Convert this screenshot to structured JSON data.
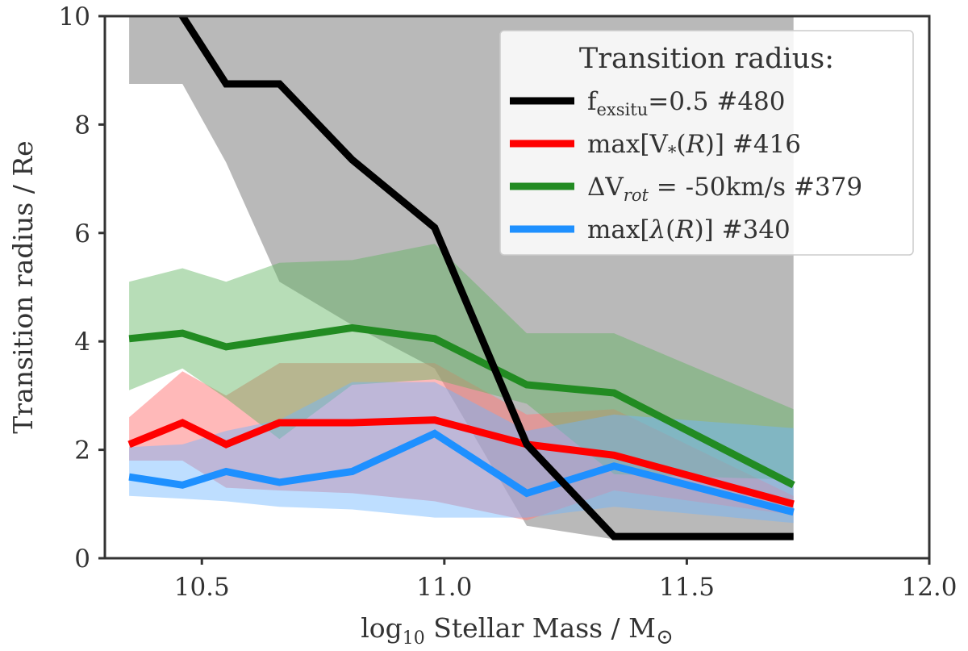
{
  "chart_data": {
    "type": "line",
    "title": "",
    "xlabel": "log10 Stellar Mass / M⊙",
    "xlabel_parts": {
      "base": "log",
      "sub": "10",
      "rest": " Stellar Mass / M",
      "sym": "⊙"
    },
    "ylabel": "Transition radius / Re",
    "xlim": [
      10.3,
      12.0
    ],
    "ylim": [
      0,
      10
    ],
    "x_ticks": [
      10.5,
      11.0,
      11.5,
      12.0
    ],
    "x_tick_labels": [
      "10.5",
      "11.0",
      "11.5",
      "12.0"
    ],
    "y_ticks": [
      0,
      2,
      4,
      6,
      8,
      10
    ],
    "y_tick_labels": [
      "0",
      "2",
      "4",
      "6",
      "8",
      "10"
    ],
    "grid": false,
    "legend": {
      "title": "Transition radius:",
      "placement": "top-right",
      "entries": [
        {
          "series": "black",
          "parts": [
            {
              "t": "f"
            },
            {
              "t": "exsitu",
              "sub": true
            },
            {
              "t": "=0.5   #480"
            }
          ]
        },
        {
          "series": "red",
          "parts": [
            {
              "t": "max[V"
            },
            {
              "t": "*",
              "sub": true
            },
            {
              "t": "("
            },
            {
              "t": "R",
              "italic": true
            },
            {
              "t": ")]  #416"
            }
          ]
        },
        {
          "series": "green",
          "parts": [
            {
              "t": "ΔV"
            },
            {
              "t": "rot",
              "sub": true,
              "italic": true
            },
            {
              "t": " = -50km/s #379"
            }
          ]
        },
        {
          "series": "blue",
          "parts": [
            {
              "t": "max["
            },
            {
              "t": "λ",
              "italic": true
            },
            {
              "t": "("
            },
            {
              "t": "R",
              "italic": true
            },
            {
              "t": ")]   #340"
            }
          ]
        }
      ]
    },
    "x": [
      10.35,
      10.46,
      10.55,
      10.66,
      10.81,
      10.98,
      11.17,
      11.35,
      11.72
    ],
    "series": [
      {
        "name": "f_exsitu=0.5 #480",
        "key": "black",
        "color": "#000000",
        "band_color": "#808080",
        "band_opacity": 0.55,
        "x": [
          10.35,
          10.46,
          10.55,
          10.66,
          10.81,
          10.98,
          11.17,
          11.35,
          11.72
        ],
        "values": [
          null,
          10.0,
          8.75,
          8.75,
          7.35,
          6.1,
          2.1,
          0.4,
          0.4
        ],
        "band_x": [
          10.35,
          10.46,
          10.55,
          10.66,
          10.81,
          10.98,
          11.17,
          11.35,
          11.72
        ],
        "upper": [
          10.0,
          10.0,
          10.0,
          10.0,
          10.0,
          10.0,
          10.0,
          10.0,
          10.0
        ],
        "lower": [
          8.75,
          8.75,
          7.3,
          5.1,
          4.3,
          3.5,
          0.6,
          0.35,
          0.35
        ]
      },
      {
        "name": "max[V*(R)] #416",
        "key": "red",
        "color": "#ff0000",
        "band_color": "#ff7f7f",
        "band_opacity": 0.55,
        "x": [
          10.35,
          10.46,
          10.55,
          10.66,
          10.81,
          10.98,
          11.17,
          11.35,
          11.72
        ],
        "values": [
          2.1,
          2.5,
          2.1,
          2.5,
          2.5,
          2.55,
          2.1,
          1.9,
          1.0
        ],
        "band_x": [
          10.35,
          10.46,
          10.55,
          10.66,
          10.81,
          10.98,
          11.17,
          11.35,
          11.72
        ],
        "upper": [
          2.6,
          3.45,
          3.0,
          3.6,
          3.6,
          3.6,
          2.65,
          2.75,
          1.15
        ],
        "lower": [
          1.8,
          1.8,
          1.3,
          1.25,
          1.2,
          1.05,
          0.7,
          1.25,
          0.8
        ]
      },
      {
        "name": "ΔV_rot = -50km/s #379",
        "key": "green",
        "color": "#228b22",
        "band_color": "#5fb35f",
        "band_opacity": 0.45,
        "x": [
          10.35,
          10.46,
          10.55,
          10.66,
          10.81,
          10.98,
          11.17,
          11.35,
          11.72
        ],
        "values": [
          4.05,
          4.15,
          3.9,
          4.05,
          4.25,
          4.05,
          3.2,
          3.05,
          1.35
        ],
        "band_x": [
          10.35,
          10.46,
          10.55,
          10.66,
          10.81,
          10.98,
          11.17,
          11.35,
          11.72
        ],
        "upper": [
          5.1,
          5.35,
          5.1,
          5.45,
          5.5,
          5.8,
          4.15,
          4.15,
          2.75
        ],
        "lower": [
          3.1,
          3.5,
          2.95,
          2.2,
          3.2,
          3.3,
          2.85,
          1.55,
          1.45
        ]
      },
      {
        "name": "max[λ(R)] #340",
        "key": "blue",
        "color": "#1e90ff",
        "band_color": "#6fb6ff",
        "band_opacity": 0.45,
        "x": [
          10.35,
          10.46,
          10.55,
          10.66,
          10.81,
          10.98,
          11.17,
          11.35,
          11.72
        ],
        "values": [
          1.5,
          1.35,
          1.6,
          1.4,
          1.6,
          2.3,
          1.2,
          1.7,
          0.85
        ],
        "band_x": [
          10.35,
          10.46,
          10.55,
          10.66,
          10.81,
          10.98,
          11.17,
          11.35,
          11.72
        ],
        "upper": [
          2.05,
          2.1,
          2.35,
          2.55,
          3.25,
          3.25,
          2.35,
          2.65,
          2.4
        ],
        "lower": [
          1.15,
          1.1,
          1.05,
          0.95,
          0.9,
          0.75,
          0.75,
          0.95,
          0.65
        ]
      }
    ]
  }
}
